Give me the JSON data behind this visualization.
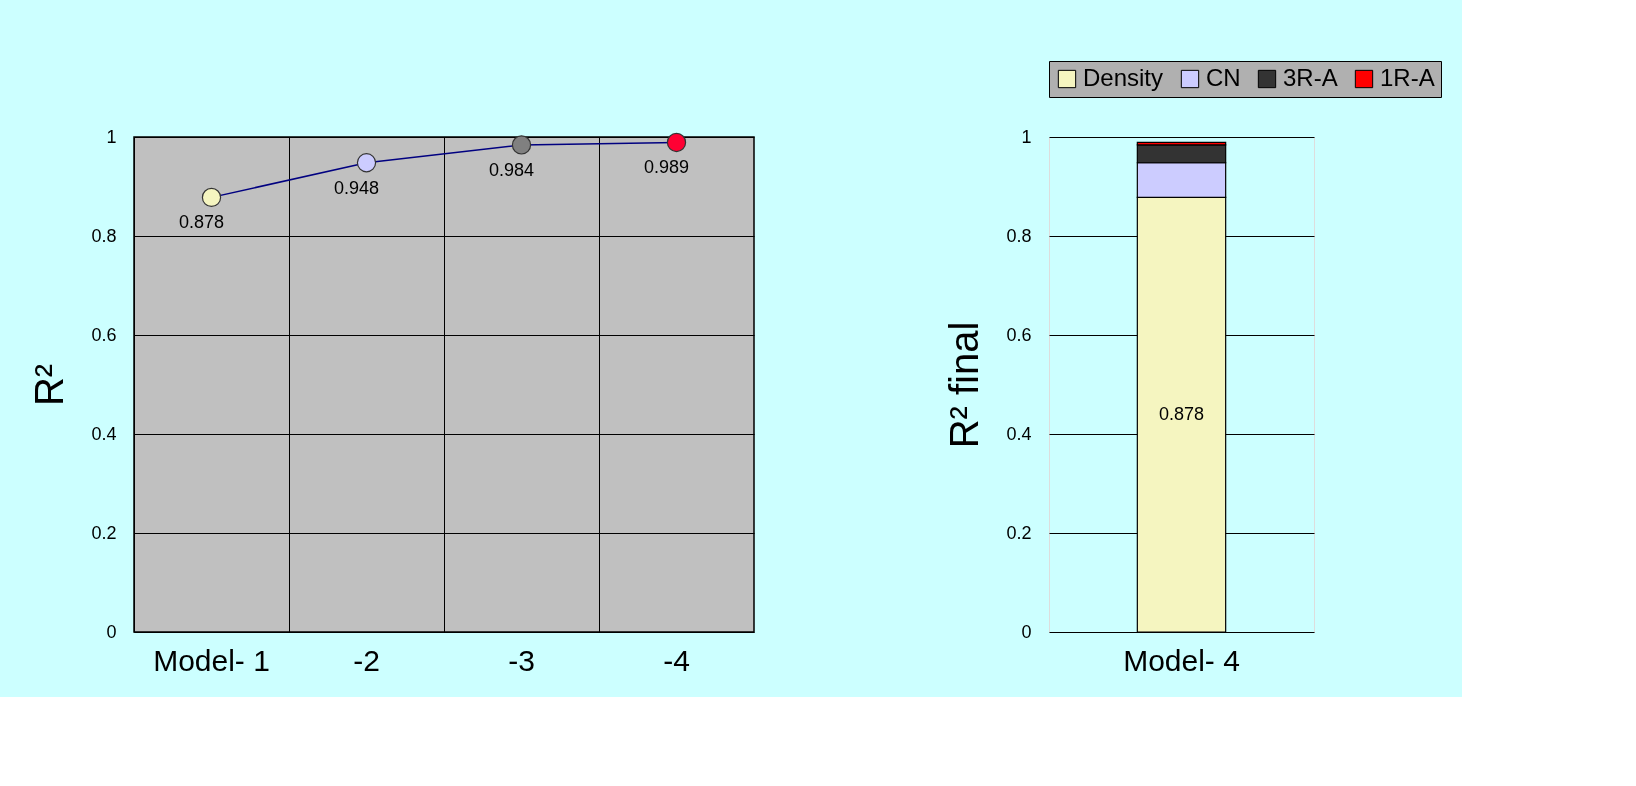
{
  "chart_data": [
    {
      "type": "line",
      "categories": [
        "Model- 1",
        "-2",
        "-3",
        "-4"
      ],
      "ylabel": "R²",
      "series": [
        {
          "color": "#000080",
          "colors": [
            "#f5f5c0",
            "#ccccff",
            "#808080",
            "#ff0033"
          ],
          "values": [
            0.878,
            0.948,
            0.984,
            0.989
          ]
        }
      ],
      "marker": "circle",
      "line_style": "solid",
      "data_labels": true,
      "ylim": [
        0,
        1
      ],
      "yticks": [
        0,
        0.2,
        0.4,
        0.6,
        0.8,
        1
      ],
      "grid": true,
      "legend": false
    },
    {
      "type": "bar",
      "stacked": true,
      "categories": [
        "Model- 4"
      ],
      "ylabel": "R² final",
      "series": [
        {
          "name": "Density",
          "color": "#f5f5c0",
          "values": [
            0.878
          ],
          "value_labels": [
            "0.878"
          ]
        },
        {
          "name": "CN",
          "color": "#ccccff",
          "values": [
            0.07
          ]
        },
        {
          "name": "3R-A",
          "color": "#333333",
          "values": [
            0.036
          ]
        },
        {
          "name": "1R-A",
          "color": "#ff0000",
          "values": [
            0.005
          ]
        }
      ],
      "ylim": [
        0,
        1
      ],
      "yticks": [
        0,
        0.2,
        0.4,
        0.6,
        0.8,
        1
      ],
      "grid": "y",
      "legend": "top"
    }
  ]
}
